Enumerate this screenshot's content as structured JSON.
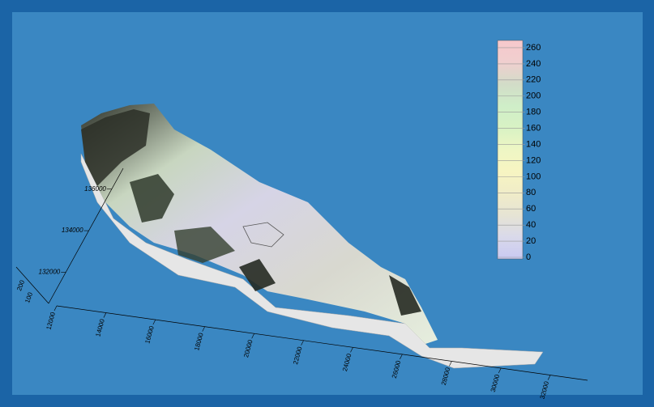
{
  "chart_data": {
    "type": "surface3d",
    "colorbar": {
      "clim": [
        -2,
        269
      ],
      "ticks": [
        0,
        20,
        40,
        60,
        80,
        100,
        120,
        140,
        160,
        180,
        200,
        220,
        240,
        260
      ],
      "colors": [
        "#c9c9f2",
        "#d9d9ea",
        "#e6e4d4",
        "#f0ecc8",
        "#f7f5c2",
        "#eef6c4",
        "#d8f2c4",
        "#cfeec8",
        "#d2dcc8",
        "#f0cfcf",
        "#f6c8cc"
      ]
    },
    "xticks": [
      12000,
      14000,
      16000,
      18000,
      20000,
      22000,
      24000,
      26000,
      28000,
      30000,
      32000
    ],
    "yticks": [
      132000,
      134000,
      136000
    ],
    "zticks": [
      100,
      200
    ]
  }
}
